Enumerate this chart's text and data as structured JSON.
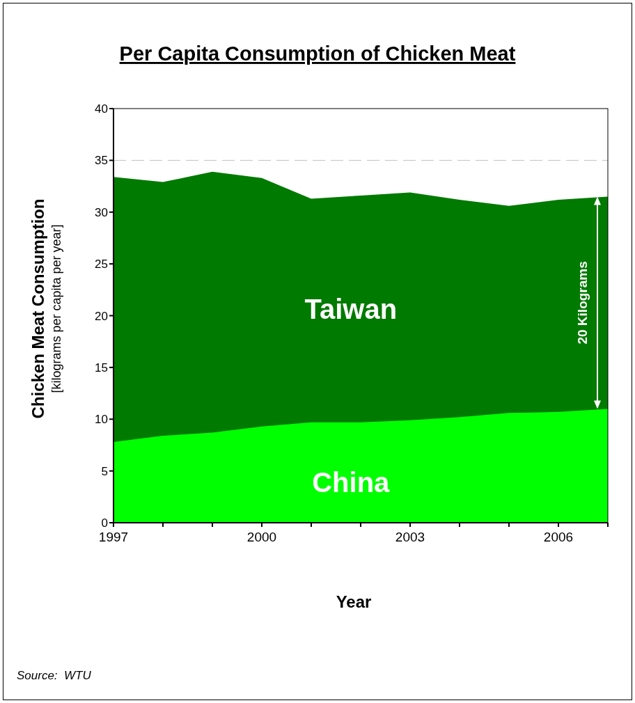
{
  "chart_data": {
    "type": "area",
    "title": "Per Capita Consumption of Chicken Meat",
    "xlabel": "Year",
    "ylabel": "Chicken Meat Consumption\n[kilograms per capita per year]",
    "x": [
      1997,
      1998,
      1999,
      2000,
      2001,
      2002,
      2003,
      2004,
      2005,
      2006,
      2007
    ],
    "series": [
      {
        "name": "Taiwan",
        "color": "#007a00",
        "values": [
          33.4,
          32.9,
          33.9,
          33.3,
          31.3,
          31.6,
          31.9,
          31.2,
          30.6,
          31.2,
          31.5
        ]
      },
      {
        "name": "China",
        "color": "#00ff00",
        "values": [
          7.8,
          8.4,
          8.7,
          9.3,
          9.7,
          9.7,
          9.9,
          10.2,
          10.6,
          10.7,
          11.0
        ]
      }
    ],
    "xlim": [
      1997,
      2007
    ],
    "xticks": [
      1997,
      {
        "value": 1998,
        "label": null
      },
      {
        "value": 1999,
        "label": null
      },
      2000,
      {
        "value": 2001,
        "label": null
      },
      {
        "value": 2002,
        "label": null
      },
      2003,
      {
        "value": 2004,
        "label": null
      },
      {
        "value": 2005,
        "label": null
      },
      2006,
      {
        "value": 2007,
        "label": null
      }
    ],
    "ylim": [
      0,
      40
    ],
    "yticks": [
      0,
      5,
      10,
      15,
      20,
      25,
      30,
      35,
      40
    ],
    "ref_lines": [
      {
        "axis": "y",
        "value": 35,
        "color": "#c0c0c0",
        "line_style": "dashed"
      }
    ],
    "annotations": [
      "20 Kilograms",
      "Source:  WTU"
    ]
  }
}
